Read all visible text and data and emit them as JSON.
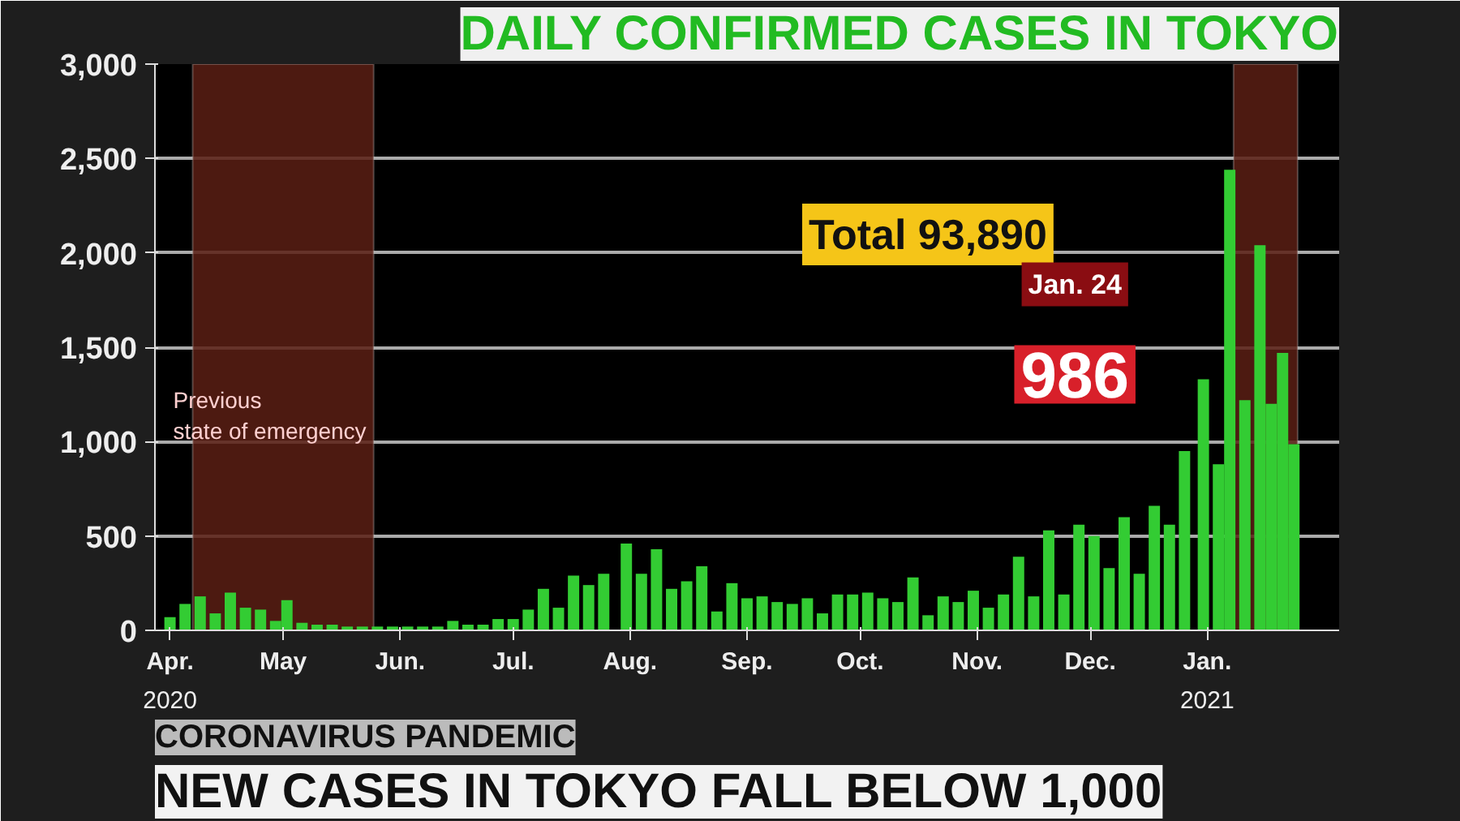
{
  "chart_data": {
    "type": "bar",
    "title": "DAILY CONFIRMED CASES IN TOKYO",
    "subtitle": "NEW CASES IN TOKYO FALL BELOW 1,000",
    "x": [
      "2020-04-01",
      "2020-04-05",
      "2020-04-09",
      "2020-04-13",
      "2020-04-17",
      "2020-04-21",
      "2020-04-25",
      "2020-04-29",
      "2020-05-02",
      "2020-05-06",
      "2020-05-10",
      "2020-05-14",
      "2020-05-18",
      "2020-05-22",
      "2020-05-26",
      "2020-05-30",
      "2020-06-03",
      "2020-06-07",
      "2020-06-11",
      "2020-06-15",
      "2020-06-19",
      "2020-06-23",
      "2020-06-27",
      "2020-07-01",
      "2020-07-05",
      "2020-07-09",
      "2020-07-13",
      "2020-07-17",
      "2020-07-21",
      "2020-07-25",
      "2020-07-31",
      "2020-08-04",
      "2020-08-08",
      "2020-08-12",
      "2020-08-16",
      "2020-08-20",
      "2020-08-24",
      "2020-08-28",
      "2020-09-01",
      "2020-09-05",
      "2020-09-09",
      "2020-09-13",
      "2020-09-17",
      "2020-09-21",
      "2020-09-25",
      "2020-09-29",
      "2020-10-03",
      "2020-10-07",
      "2020-10-11",
      "2020-10-15",
      "2020-10-19",
      "2020-10-23",
      "2020-10-27",
      "2020-10-31",
      "2020-11-04",
      "2020-11-08",
      "2020-11-12",
      "2020-11-16",
      "2020-11-20",
      "2020-11-24",
      "2020-11-28",
      "2020-12-02",
      "2020-12-06",
      "2020-12-10",
      "2020-12-14",
      "2020-12-18",
      "2020-12-22",
      "2020-12-26",
      "2020-12-31",
      "2021-01-04",
      "2021-01-07",
      "2021-01-11",
      "2021-01-15",
      "2021-01-18",
      "2021-01-21",
      "2021-01-24"
    ],
    "values": [
      70,
      140,
      180,
      90,
      200,
      120,
      110,
      50,
      160,
      40,
      30,
      30,
      20,
      20,
      20,
      20,
      20,
      20,
      20,
      50,
      30,
      30,
      60,
      60,
      110,
      220,
      120,
      290,
      240,
      300,
      460,
      300,
      430,
      220,
      260,
      340,
      100,
      250,
      170,
      180,
      150,
      140,
      170,
      90,
      190,
      190,
      200,
      170,
      150,
      280,
      80,
      180,
      150,
      210,
      120,
      190,
      390,
      180,
      530,
      190,
      560,
      500,
      330,
      600,
      300,
      660,
      560,
      950,
      1330,
      880,
      2440,
      1220,
      2040,
      1200,
      1470,
      986
    ],
    "color": "#33cc33",
    "xlim": [
      "2020-03-28",
      "2021-02-05"
    ],
    "xticks": [
      {
        "value": "2020-04-01",
        "label": "Apr."
      },
      {
        "value": "2020-05-01",
        "label": "May"
      },
      {
        "value": "2020-06-01",
        "label": "Jun."
      },
      {
        "value": "2020-07-01",
        "label": "Jul."
      },
      {
        "value": "2020-08-01",
        "label": "Aug."
      },
      {
        "value": "2020-09-01",
        "label": "Sep."
      },
      {
        "value": "2020-10-01",
        "label": "Oct."
      },
      {
        "value": "2020-11-01",
        "label": "Nov."
      },
      {
        "value": "2020-12-01",
        "label": "Dec."
      },
      {
        "value": "2021-01-01",
        "label": "Jan."
      }
    ],
    "ylim": [
      0,
      3000
    ],
    "yticks": [
      {
        "value": 0,
        "label": "0"
      },
      {
        "value": 500,
        "label": "500"
      },
      {
        "value": 1000,
        "label": "1,000"
      },
      {
        "value": 1500,
        "label": "1,500"
      },
      {
        "value": 2000,
        "label": "2,000"
      },
      {
        "value": 2500,
        "label": "2,500"
      },
      {
        "value": 3000,
        "label": "3,000"
      }
    ],
    "grid": "y",
    "bands": [
      {
        "axis": "x",
        "from": "2020-04-07",
        "to": "2020-05-25",
        "label": "Previous\nstate of emergency",
        "color": "#5a1e14"
      },
      {
        "axis": "x",
        "from": "2021-01-08",
        "to": "2021-01-25",
        "color": "#5a1e14"
      }
    ],
    "annotations": [
      "Total 93,890",
      "Jan. 24",
      {
        "text": "986",
        "x": "2021-01-24",
        "y": 986
      },
      "2020",
      "2021",
      "CORONAVIRUS PANDEMIC"
    ]
  }
}
